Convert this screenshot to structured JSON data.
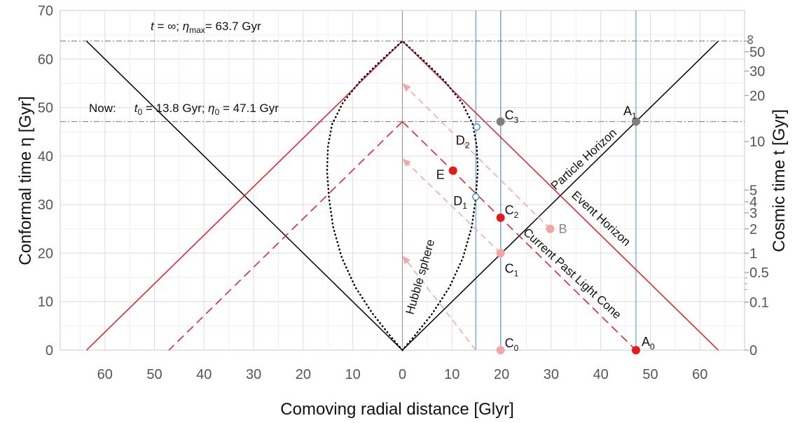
{
  "chart_data": {
    "type": "line",
    "title": "",
    "xlabel": "Comoving radial distance [Glyr]",
    "ylabel_left": "Conformal time η [Gyr]",
    "ylabel_right": "Cosmic time  t [Gyr]",
    "xlim": [
      -69,
      69
    ],
    "ylim": [
      0,
      70
    ],
    "x_tick_values": [
      -60,
      -50,
      -40,
      -30,
      -20,
      -10,
      0,
      10,
      20,
      30,
      40,
      50,
      60
    ],
    "x_tick_labels": [
      "60",
      "50",
      "40",
      "30",
      "20",
      "10",
      "0",
      "10",
      "20",
      "30",
      "40",
      "50",
      "60"
    ],
    "y_ticks": [
      0,
      10,
      20,
      30,
      40,
      50,
      60,
      70
    ],
    "right_ticks": [
      {
        "label": "0",
        "eta": 0
      },
      {
        "label": "0.1",
        "eta": 9.9
      },
      {
        "label": "0.5",
        "eta": 16.0
      },
      {
        "label": "1",
        "eta": 20.0
      },
      {
        "label": "2",
        "eta": 25.0
      },
      {
        "label": "3",
        "eta": 28.3
      },
      {
        "label": "4",
        "eta": 30.6
      },
      {
        "label": "5",
        "eta": 33.0
      },
      {
        "label": "10",
        "eta": 43.0
      },
      {
        "label": "20",
        "eta": 52.5
      },
      {
        "label": "30",
        "eta": 57.5
      },
      {
        "label": "50",
        "eta": 61.5
      },
      {
        "label": "∞",
        "eta": 63.7
      }
    ],
    "grid": true,
    "eta_max": 63.7,
    "eta_now": 47.1,
    "lines": [
      {
        "name": "Particle Horizon",
        "color": "#000000",
        "dash": "solid",
        "points": [
          [
            0,
            0
          ],
          [
            63.7,
            63.7
          ]
        ]
      },
      {
        "name": "",
        "color": "#000000",
        "dash": "solid",
        "points": [
          [
            0,
            0
          ],
          [
            -63.7,
            63.7
          ]
        ]
      },
      {
        "name": "Event Horizon",
        "color": "#e8191c",
        "dash": "solid",
        "points": [
          [
            0,
            63.7
          ],
          [
            63.7,
            0
          ]
        ]
      },
      {
        "name": "",
        "color": "#e8191c",
        "dash": "solid",
        "points": [
          [
            0,
            63.7
          ],
          [
            -63.7,
            0
          ]
        ]
      },
      {
        "name": "Current Past Light Cone",
        "color": "#e8191c",
        "dash": "dashed",
        "points": [
          [
            0,
            47.1
          ],
          [
            47.1,
            0
          ]
        ]
      },
      {
        "name": "",
        "color": "#e8191c",
        "dash": "dashed",
        "points": [
          [
            0,
            47.1
          ],
          [
            -47.1,
            0
          ]
        ]
      }
    ],
    "verticals": [
      {
        "x": 14.8,
        "color": "#4a90c8"
      },
      {
        "x": 19.8,
        "color": "#4a90c8"
      },
      {
        "x": 47.1,
        "color": "#4a90c8"
      }
    ],
    "arrows": [
      {
        "from": [
          14.8,
          0
        ],
        "to": [
          0,
          19.5
        ]
      },
      {
        "from": [
          19.8,
          20
        ],
        "to": [
          0,
          39.5
        ]
      },
      {
        "from": [
          29.8,
          25
        ],
        "to": [
          0,
          55
        ]
      }
    ],
    "hubble_sphere": [
      [
        0,
        0
      ],
      [
        2.5,
        3
      ],
      [
        6,
        7.5
      ],
      [
        9.5,
        13
      ],
      [
        12.2,
        19
      ],
      [
        14.0,
        25.5
      ],
      [
        14.8,
        31.4
      ],
      [
        15.2,
        37
      ],
      [
        15.0,
        42
      ],
      [
        14.2,
        46.5
      ],
      [
        12.0,
        51
      ],
      [
        8.5,
        55.5
      ],
      [
        4.5,
        59.5
      ],
      [
        0,
        63.7
      ]
    ],
    "points": [
      {
        "label": "A",
        "sub": "0",
        "x": 47.1,
        "y": 0,
        "color": "#e8191c",
        "style": "filled"
      },
      {
        "label": "A",
        "sub": "1",
        "x": 47.1,
        "y": 47.1,
        "color": "#7f7f7f",
        "style": "filled"
      },
      {
        "label": "B",
        "sub": "",
        "x": 29.8,
        "y": 25,
        "color": "#f4a6a6",
        "style": "filled"
      },
      {
        "label": "C",
        "sub": "0",
        "x": 19.8,
        "y": 0,
        "color": "#f4a6a6",
        "style": "filled"
      },
      {
        "label": "C",
        "sub": "1",
        "x": 19.8,
        "y": 20,
        "color": "#f4a6a6",
        "style": "filled"
      },
      {
        "label": "C",
        "sub": "2",
        "x": 19.8,
        "y": 27.3,
        "color": "#e8191c",
        "style": "filled"
      },
      {
        "label": "C",
        "sub": "3",
        "x": 19.8,
        "y": 47.1,
        "color": "#7f7f7f",
        "style": "filled"
      },
      {
        "label": "D",
        "sub": "1",
        "x": 14.8,
        "y": 31.6,
        "color": "#4a90c8",
        "style": "open"
      },
      {
        "label": "D",
        "sub": "2",
        "x": 15.0,
        "y": 46.0,
        "color": "#4a90c8",
        "style": "open"
      },
      {
        "label": "E",
        "sub": "",
        "x": 10.2,
        "y": 37.0,
        "color": "#e8191c",
        "style": "filled"
      }
    ],
    "curve_labels": {
      "particle_horizon": "Particle Horizon",
      "event_horizon": "Event Horizon",
      "light_cone": "Current Past Light Cone",
      "hubble_sphere": "Hubble sphere"
    },
    "annotations": {
      "top_t": "t",
      "top_rest": " = ∞;  ",
      "top_eta": "η",
      "top_eta_sub": "max",
      "top_eta_val": "= 63.7 Gyr",
      "now_prefix": "Now:",
      "now_t": "t",
      "now_t_sub": "0",
      "now_t_val": " = 13.8 Gyr;  ",
      "now_eta": "η",
      "now_eta_sub": "0",
      "now_eta_val": " = 47.1 Gyr"
    }
  }
}
